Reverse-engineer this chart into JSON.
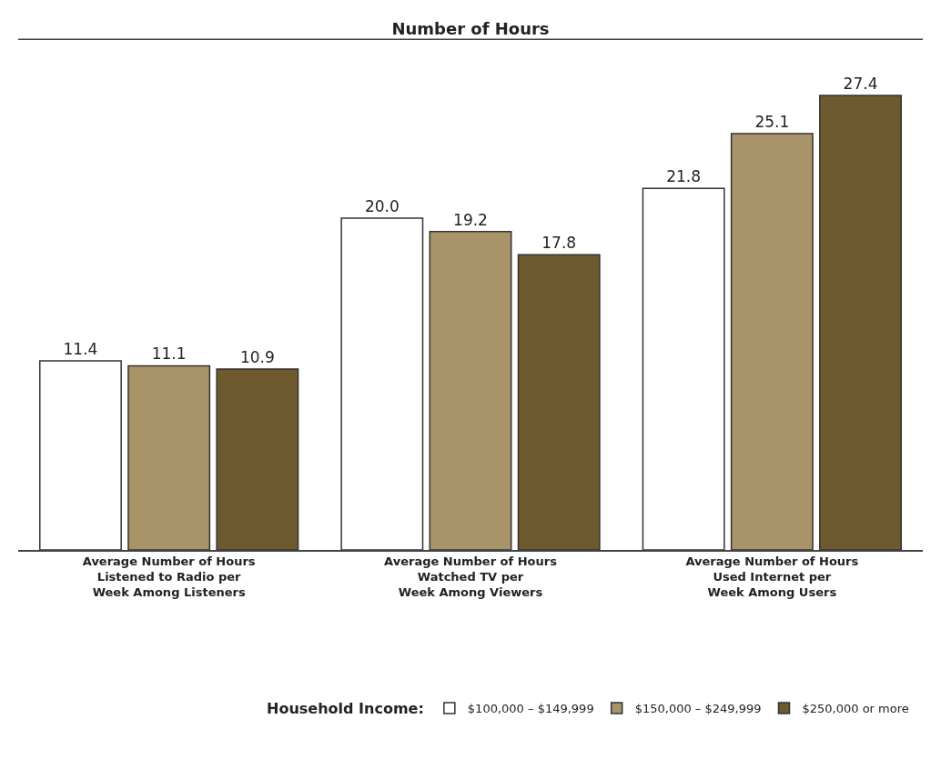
{
  "chart_data": {
    "type": "bar",
    "title": "Number of Hours",
    "legend_title": "Household Income:",
    "legend": "bottom",
    "data_labels": true,
    "categories": [
      "Average Number of Hours\nListened to Radio per\nWeek Among Listeners",
      "Average Number of Hours\nWatched TV per\nWeek Among Viewers",
      "Average Number of Hours\nUsed Internet per\nWeek Among Users"
    ],
    "series": [
      {
        "name": "$100,000 – $149,999",
        "color": "#ffffff",
        "values": [
          11.4,
          20.0,
          21.8
        ],
        "value_labels": [
          "11.4",
          "20.0",
          "21.8"
        ]
      },
      {
        "name": "$150,000 – $249,999",
        "color": "#a89468",
        "values": [
          11.1,
          19.2,
          25.1
        ]
      },
      {
        "name": "$250,000 or more",
        "color": "#6e5a2e",
        "values": [
          10.9,
          17.8,
          27.4
        ]
      }
    ]
  }
}
